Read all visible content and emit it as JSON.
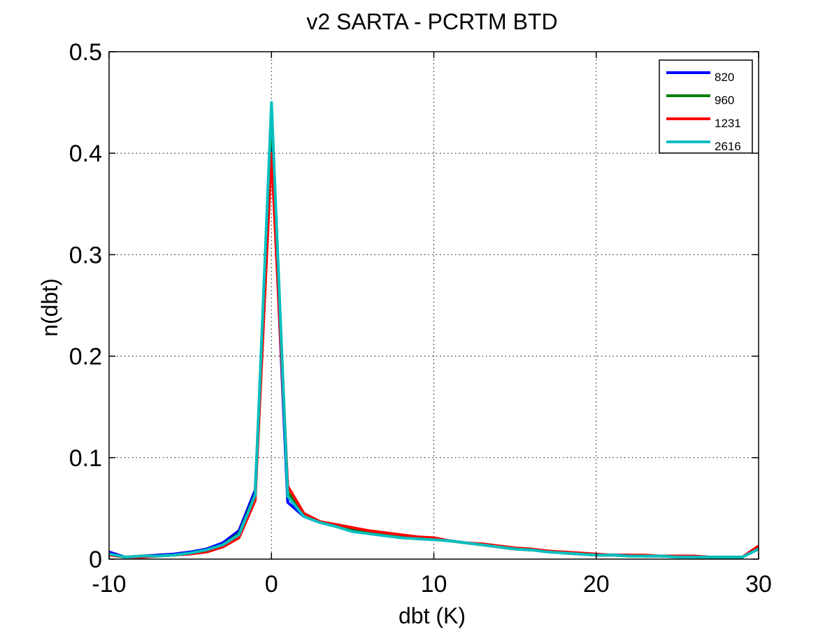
{
  "chart_data": {
    "type": "line",
    "title": "v2 SARTA - PCRTM BTD",
    "xlabel": "dbt (K)",
    "ylabel": "n(dbt)",
    "xlim": [
      -10,
      30
    ],
    "ylim": [
      0,
      0.5
    ],
    "xticks": [
      -10,
      0,
      10,
      20,
      30
    ],
    "yticks": [
      0,
      0.1,
      0.2,
      0.3,
      0.4,
      0.5
    ],
    "xtick_labels": [
      "-10",
      "0",
      "10",
      "20",
      "30"
    ],
    "ytick_labels": [
      "0",
      "0.1",
      "0.2",
      "0.3",
      "0.4",
      "0.5"
    ],
    "grid": true,
    "legend_position": "top-right",
    "x": [
      -10,
      -9,
      -8,
      -7,
      -6,
      -5,
      -4,
      -3,
      -2,
      -1,
      0,
      1,
      2,
      3,
      4,
      5,
      6,
      7,
      8,
      9,
      10,
      11,
      12,
      13,
      14,
      15,
      16,
      17,
      18,
      19,
      20,
      21,
      22,
      23,
      24,
      25,
      26,
      27,
      28,
      29,
      30
    ],
    "series": [
      {
        "name": "820",
        "color": "#0000ff",
        "values": [
          0.007,
          0.002,
          0.003,
          0.004,
          0.005,
          0.007,
          0.01,
          0.016,
          0.028,
          0.068,
          0.41,
          0.056,
          0.042,
          0.036,
          0.033,
          0.029,
          0.026,
          0.025,
          0.023,
          0.021,
          0.02,
          0.018,
          0.016,
          0.014,
          0.012,
          0.01,
          0.009,
          0.008,
          0.006,
          0.005,
          0.004,
          0.004,
          0.004,
          0.003,
          0.003,
          0.003,
          0.003,
          0.002,
          0.002,
          0.002,
          0.011
        ]
      },
      {
        "name": "960",
        "color": "#008000",
        "values": [
          0.005,
          0.002,
          0.003,
          0.003,
          0.004,
          0.006,
          0.009,
          0.014,
          0.025,
          0.064,
          0.44,
          0.066,
          0.043,
          0.036,
          0.034,
          0.03,
          0.027,
          0.025,
          0.023,
          0.021,
          0.02,
          0.018,
          0.016,
          0.014,
          0.012,
          0.01,
          0.009,
          0.008,
          0.006,
          0.005,
          0.004,
          0.004,
          0.003,
          0.003,
          0.003,
          0.003,
          0.002,
          0.002,
          0.002,
          0.002,
          0.01
        ]
      },
      {
        "name": "1231",
        "color": "#ff0000",
        "values": [
          0.004,
          0.002,
          0.002,
          0.003,
          0.004,
          0.005,
          0.007,
          0.012,
          0.021,
          0.058,
          0.4,
          0.072,
          0.045,
          0.037,
          0.034,
          0.031,
          0.028,
          0.026,
          0.024,
          0.022,
          0.021,
          0.018,
          0.016,
          0.015,
          0.013,
          0.011,
          0.01,
          0.008,
          0.007,
          0.006,
          0.005,
          0.004,
          0.004,
          0.004,
          0.003,
          0.003,
          0.003,
          0.002,
          0.002,
          0.002,
          0.013
        ]
      },
      {
        "name": "2616",
        "color": "#00bfbf",
        "values": [
          0.005,
          0.002,
          0.003,
          0.003,
          0.004,
          0.006,
          0.009,
          0.014,
          0.024,
          0.063,
          0.45,
          0.062,
          0.042,
          0.036,
          0.032,
          0.027,
          0.025,
          0.023,
          0.021,
          0.02,
          0.019,
          0.018,
          0.016,
          0.014,
          0.012,
          0.01,
          0.009,
          0.007,
          0.006,
          0.005,
          0.004,
          0.004,
          0.003,
          0.003,
          0.003,
          0.002,
          0.002,
          0.002,
          0.002,
          0.002,
          0.01
        ]
      }
    ]
  }
}
